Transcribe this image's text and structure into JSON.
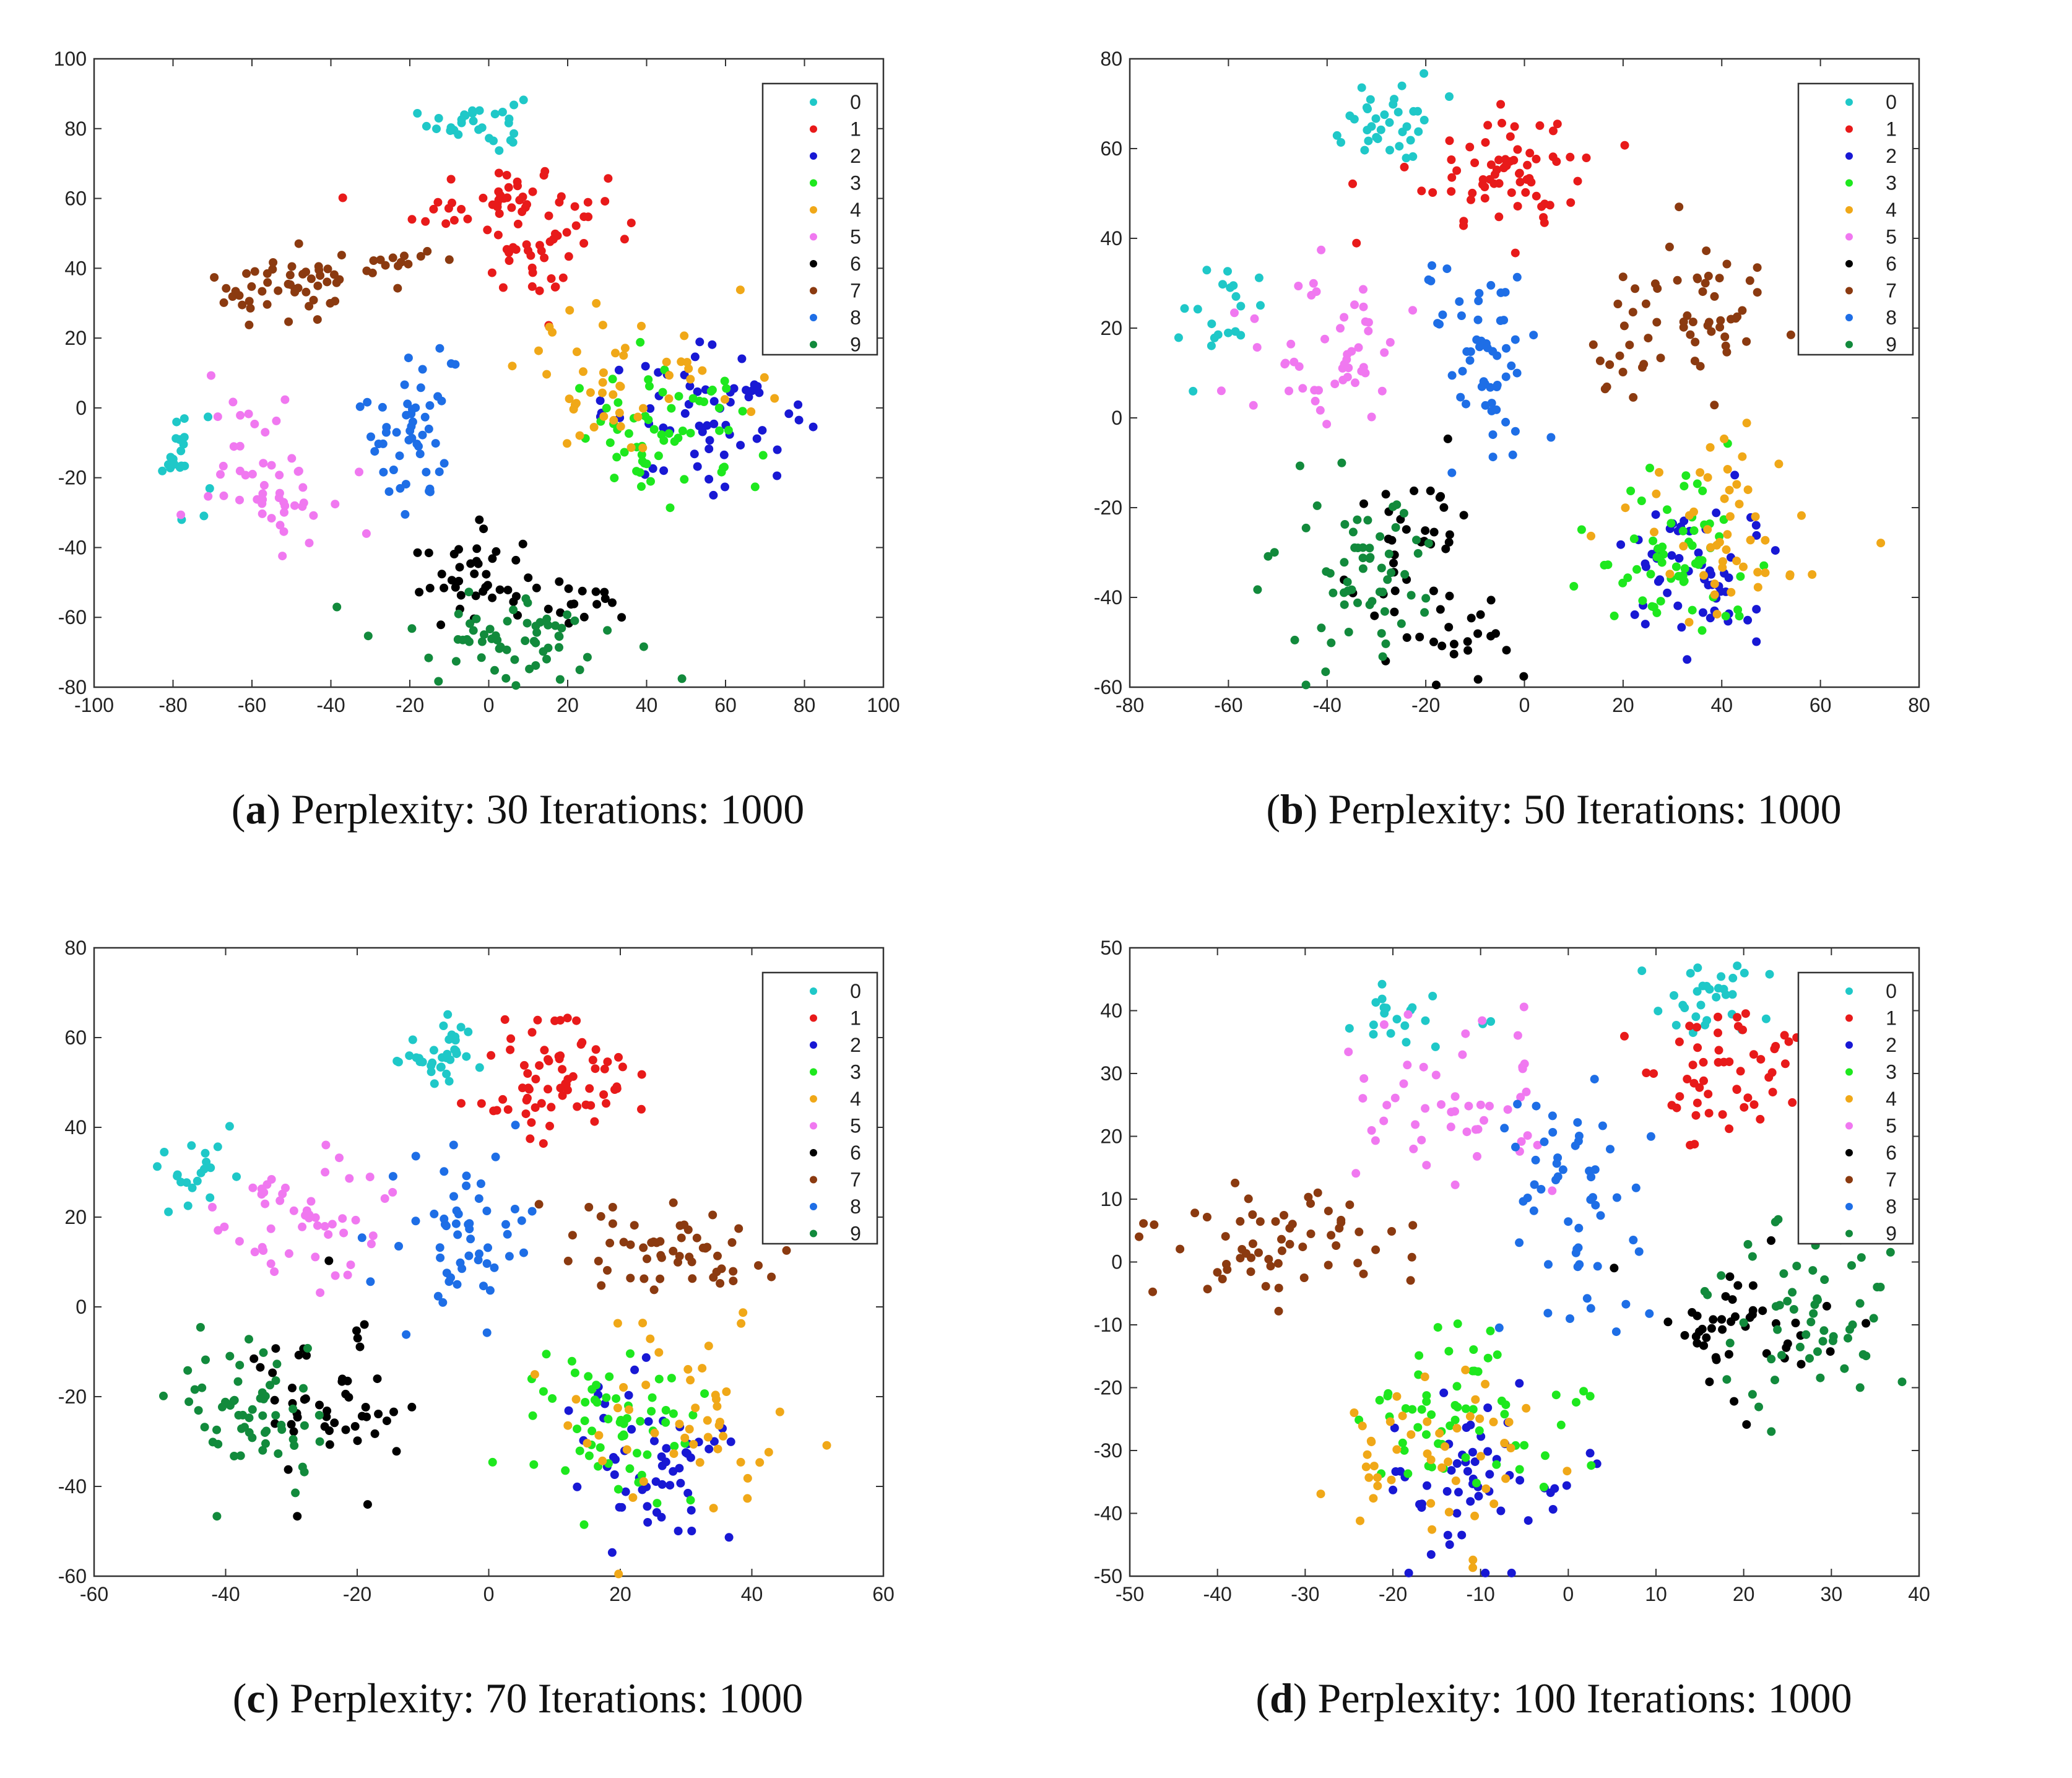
{
  "chart_data": [
    {
      "type": "scatter",
      "panel_label": "a",
      "title": "Perplexity: 30 Iterations: 1000",
      "xlabel": "",
      "ylabel": "",
      "xlim": [
        -100,
        100
      ],
      "ylim": [
        -80,
        100
      ],
      "xticks": [
        -100,
        -80,
        -60,
        -40,
        -20,
        0,
        20,
        40,
        60,
        80,
        100
      ],
      "yticks": [
        -80,
        -60,
        -40,
        -20,
        0,
        20,
        40,
        60,
        80,
        100
      ],
      "legend_position": "top-right",
      "legend": [
        "0",
        "1",
        "2",
        "3",
        "4",
        "5",
        "6",
        "7",
        "8",
        "9"
      ],
      "clusters": [
        {
          "label": "0",
          "cx": -3,
          "cy": 82,
          "sx": 6,
          "sy": 4,
          "n": 30
        },
        {
          "label": "0",
          "cx": -78,
          "cy": -12,
          "sx": 4,
          "sy": 7,
          "n": 20
        },
        {
          "label": "1",
          "cx": 5,
          "cy": 58,
          "sx": 12,
          "sy": 6,
          "n": 55
        },
        {
          "label": "1",
          "cx": 12,
          "cy": 42,
          "sx": 7,
          "sy": 6,
          "n": 25
        },
        {
          "label": "2",
          "cx": 55,
          "cy": -2,
          "sx": 13,
          "sy": 9,
          "n": 60
        },
        {
          "label": "3",
          "cx": 45,
          "cy": -8,
          "sx": 12,
          "sy": 9,
          "n": 60
        },
        {
          "label": "4",
          "cx": 38,
          "cy": 8,
          "sx": 15,
          "sy": 12,
          "n": 50
        },
        {
          "label": "5",
          "cx": -55,
          "cy": -18,
          "sx": 8,
          "sy": 10,
          "n": 50
        },
        {
          "label": "6",
          "cx": -5,
          "cy": -50,
          "sx": 8,
          "sy": 7,
          "n": 40
        },
        {
          "label": "6",
          "cx": 25,
          "cy": -58,
          "sx": 6,
          "sy": 4,
          "n": 15
        },
        {
          "label": "7",
          "cx": -50,
          "cy": 35,
          "sx": 10,
          "sy": 5,
          "n": 50
        },
        {
          "label": "7",
          "cx": -25,
          "cy": 42,
          "sx": 6,
          "sy": 3,
          "n": 12
        },
        {
          "label": "8",
          "cx": -20,
          "cy": -5,
          "sx": 6,
          "sy": 13,
          "n": 50
        },
        {
          "label": "9",
          "cx": 5,
          "cy": -65,
          "sx": 15,
          "sy": 6,
          "n": 60
        }
      ]
    },
    {
      "type": "scatter",
      "panel_label": "b",
      "title": "Perplexity: 50 Iterations: 1000",
      "xlabel": "",
      "ylabel": "",
      "xlim": [
        -80,
        80
      ],
      "ylim": [
        -60,
        80
      ],
      "xticks": [
        -80,
        -60,
        -40,
        -20,
        0,
        20,
        40,
        60,
        80
      ],
      "yticks": [
        -60,
        -40,
        -20,
        0,
        20,
        40,
        60,
        80
      ],
      "legend_position": "top-right",
      "legend": [
        "0",
        "1",
        "2",
        "3",
        "4",
        "5",
        "6",
        "7",
        "8",
        "9"
      ],
      "clusters": [
        {
          "label": "0",
          "cx": -28,
          "cy": 66,
          "sx": 5,
          "sy": 5,
          "n": 35
        },
        {
          "label": "0",
          "cx": -60,
          "cy": 24,
          "sx": 4,
          "sy": 6,
          "n": 20
        },
        {
          "label": "1",
          "cx": -5,
          "cy": 55,
          "sx": 9,
          "sy": 7,
          "n": 70
        },
        {
          "label": "2",
          "cx": 35,
          "cy": -35,
          "sx": 7,
          "sy": 9,
          "n": 55
        },
        {
          "label": "3",
          "cx": 30,
          "cy": -30,
          "sx": 9,
          "sy": 9,
          "n": 60
        },
        {
          "label": "4",
          "cx": 40,
          "cy": -25,
          "sx": 12,
          "sy": 12,
          "n": 50
        },
        {
          "label": "5",
          "cx": -40,
          "cy": 15,
          "sx": 7,
          "sy": 9,
          "n": 50
        },
        {
          "label": "6",
          "cx": -22,
          "cy": -30,
          "sx": 7,
          "sy": 10,
          "n": 40
        },
        {
          "label": "6",
          "cx": -10,
          "cy": -50,
          "sx": 5,
          "sy": 4,
          "n": 15
        },
        {
          "label": "7",
          "cx": 35,
          "cy": 25,
          "sx": 8,
          "sy": 7,
          "n": 50
        },
        {
          "label": "7",
          "cx": 18,
          "cy": 13,
          "sx": 3,
          "sy": 4,
          "n": 10
        },
        {
          "label": "8",
          "cx": -10,
          "cy": 12,
          "sx": 6,
          "sy": 12,
          "n": 55
        },
        {
          "label": "9",
          "cx": -35,
          "cy": -35,
          "sx": 8,
          "sy": 10,
          "n": 60
        }
      ]
    },
    {
      "type": "scatter",
      "panel_label": "c",
      "title": "Perplexity: 70 Iterations: 1000",
      "xlabel": "",
      "ylabel": "",
      "xlim": [
        -60,
        60
      ],
      "ylim": [
        -60,
        80
      ],
      "xticks": [
        -60,
        -40,
        -20,
        0,
        20,
        40,
        60
      ],
      "yticks": [
        -60,
        -40,
        -20,
        0,
        20,
        40,
        60,
        80
      ],
      "legend_position": "top-right",
      "legend": [
        "0",
        "1",
        "2",
        "3",
        "4",
        "5",
        "6",
        "7",
        "8",
        "9"
      ],
      "clusters": [
        {
          "label": "0",
          "cx": -6,
          "cy": 57,
          "sx": 4,
          "sy": 4,
          "n": 35
        },
        {
          "label": "0",
          "cx": -45,
          "cy": 30,
          "sx": 3,
          "sy": 4,
          "n": 20
        },
        {
          "label": "1",
          "cx": 10,
          "cy": 50,
          "sx": 6,
          "sy": 8,
          "n": 70
        },
        {
          "label": "2",
          "cx": 25,
          "cy": -35,
          "sx": 6,
          "sy": 9,
          "n": 55
        },
        {
          "label": "3",
          "cx": 19,
          "cy": -28,
          "sx": 7,
          "sy": 9,
          "n": 60
        },
        {
          "label": "4",
          "cx": 30,
          "cy": -25,
          "sx": 10,
          "sy": 12,
          "n": 50
        },
        {
          "label": "5",
          "cx": -28,
          "cy": 20,
          "sx": 6,
          "sy": 8,
          "n": 50
        },
        {
          "label": "6",
          "cx": -24,
          "cy": -22,
          "sx": 6,
          "sy": 10,
          "n": 50
        },
        {
          "label": "7",
          "cx": 27,
          "cy": 13,
          "sx": 9,
          "sy": 5,
          "n": 55
        },
        {
          "label": "8",
          "cx": -5,
          "cy": 15,
          "sx": 5,
          "sy": 11,
          "n": 55
        },
        {
          "label": "9",
          "cx": -36,
          "cy": -25,
          "sx": 6,
          "sy": 8,
          "n": 60
        }
      ]
    },
    {
      "type": "scatter",
      "panel_label": "d",
      "title": "Perplexity: 100 Iterations: 1000",
      "xlabel": "",
      "ylabel": "",
      "xlim": [
        -50,
        40
      ],
      "ylim": [
        -50,
        50
      ],
      "xticks": [
        -50,
        -40,
        -30,
        -20,
        -10,
        0,
        10,
        20,
        30,
        40
      ],
      "yticks": [
        -50,
        -40,
        -30,
        -20,
        -10,
        0,
        10,
        20,
        30,
        40,
        50
      ],
      "legend_position": "top-right",
      "legend": [
        "0",
        "1",
        "2",
        "3",
        "4",
        "5",
        "6",
        "7",
        "8",
        "9"
      ],
      "clusters": [
        {
          "label": "0",
          "cx": 15,
          "cy": 42,
          "sx": 4,
          "sy": 3,
          "n": 30
        },
        {
          "label": "0",
          "cx": -20,
          "cy": 38,
          "sx": 4,
          "sy": 3,
          "n": 20
        },
        {
          "label": "1",
          "cx": 18,
          "cy": 30,
          "sx": 5,
          "sy": 6,
          "n": 55
        },
        {
          "label": "2",
          "cx": -10,
          "cy": -35,
          "sx": 5,
          "sy": 7,
          "n": 55
        },
        {
          "label": "3",
          "cx": -12,
          "cy": -25,
          "sx": 6,
          "sy": 6,
          "n": 60
        },
        {
          "label": "4",
          "cx": -15,
          "cy": -30,
          "sx": 7,
          "sy": 8,
          "n": 50
        },
        {
          "label": "5",
          "cx": -13,
          "cy": 25,
          "sx": 6,
          "sy": 7,
          "n": 50
        },
        {
          "label": "6",
          "cx": 20,
          "cy": -12,
          "sx": 6,
          "sy": 7,
          "n": 45
        },
        {
          "label": "7",
          "cx": -32,
          "cy": 3,
          "sx": 7,
          "sy": 4,
          "n": 60
        },
        {
          "label": "8",
          "cx": 0,
          "cy": 8,
          "sx": 4,
          "sy": 10,
          "n": 55
        },
        {
          "label": "9",
          "cx": 27,
          "cy": -8,
          "sx": 5,
          "sy": 9,
          "n": 60
        }
      ]
    }
  ],
  "colors": {
    "0": "#1fc8c8",
    "1": "#e81a1a",
    "2": "#1818d4",
    "3": "#1ee81e",
    "4": "#f0a818",
    "5": "#f078f0",
    "6": "#000000",
    "7": "#8b3a10",
    "8": "#1e6ee6",
    "9": "#128a3c"
  }
}
